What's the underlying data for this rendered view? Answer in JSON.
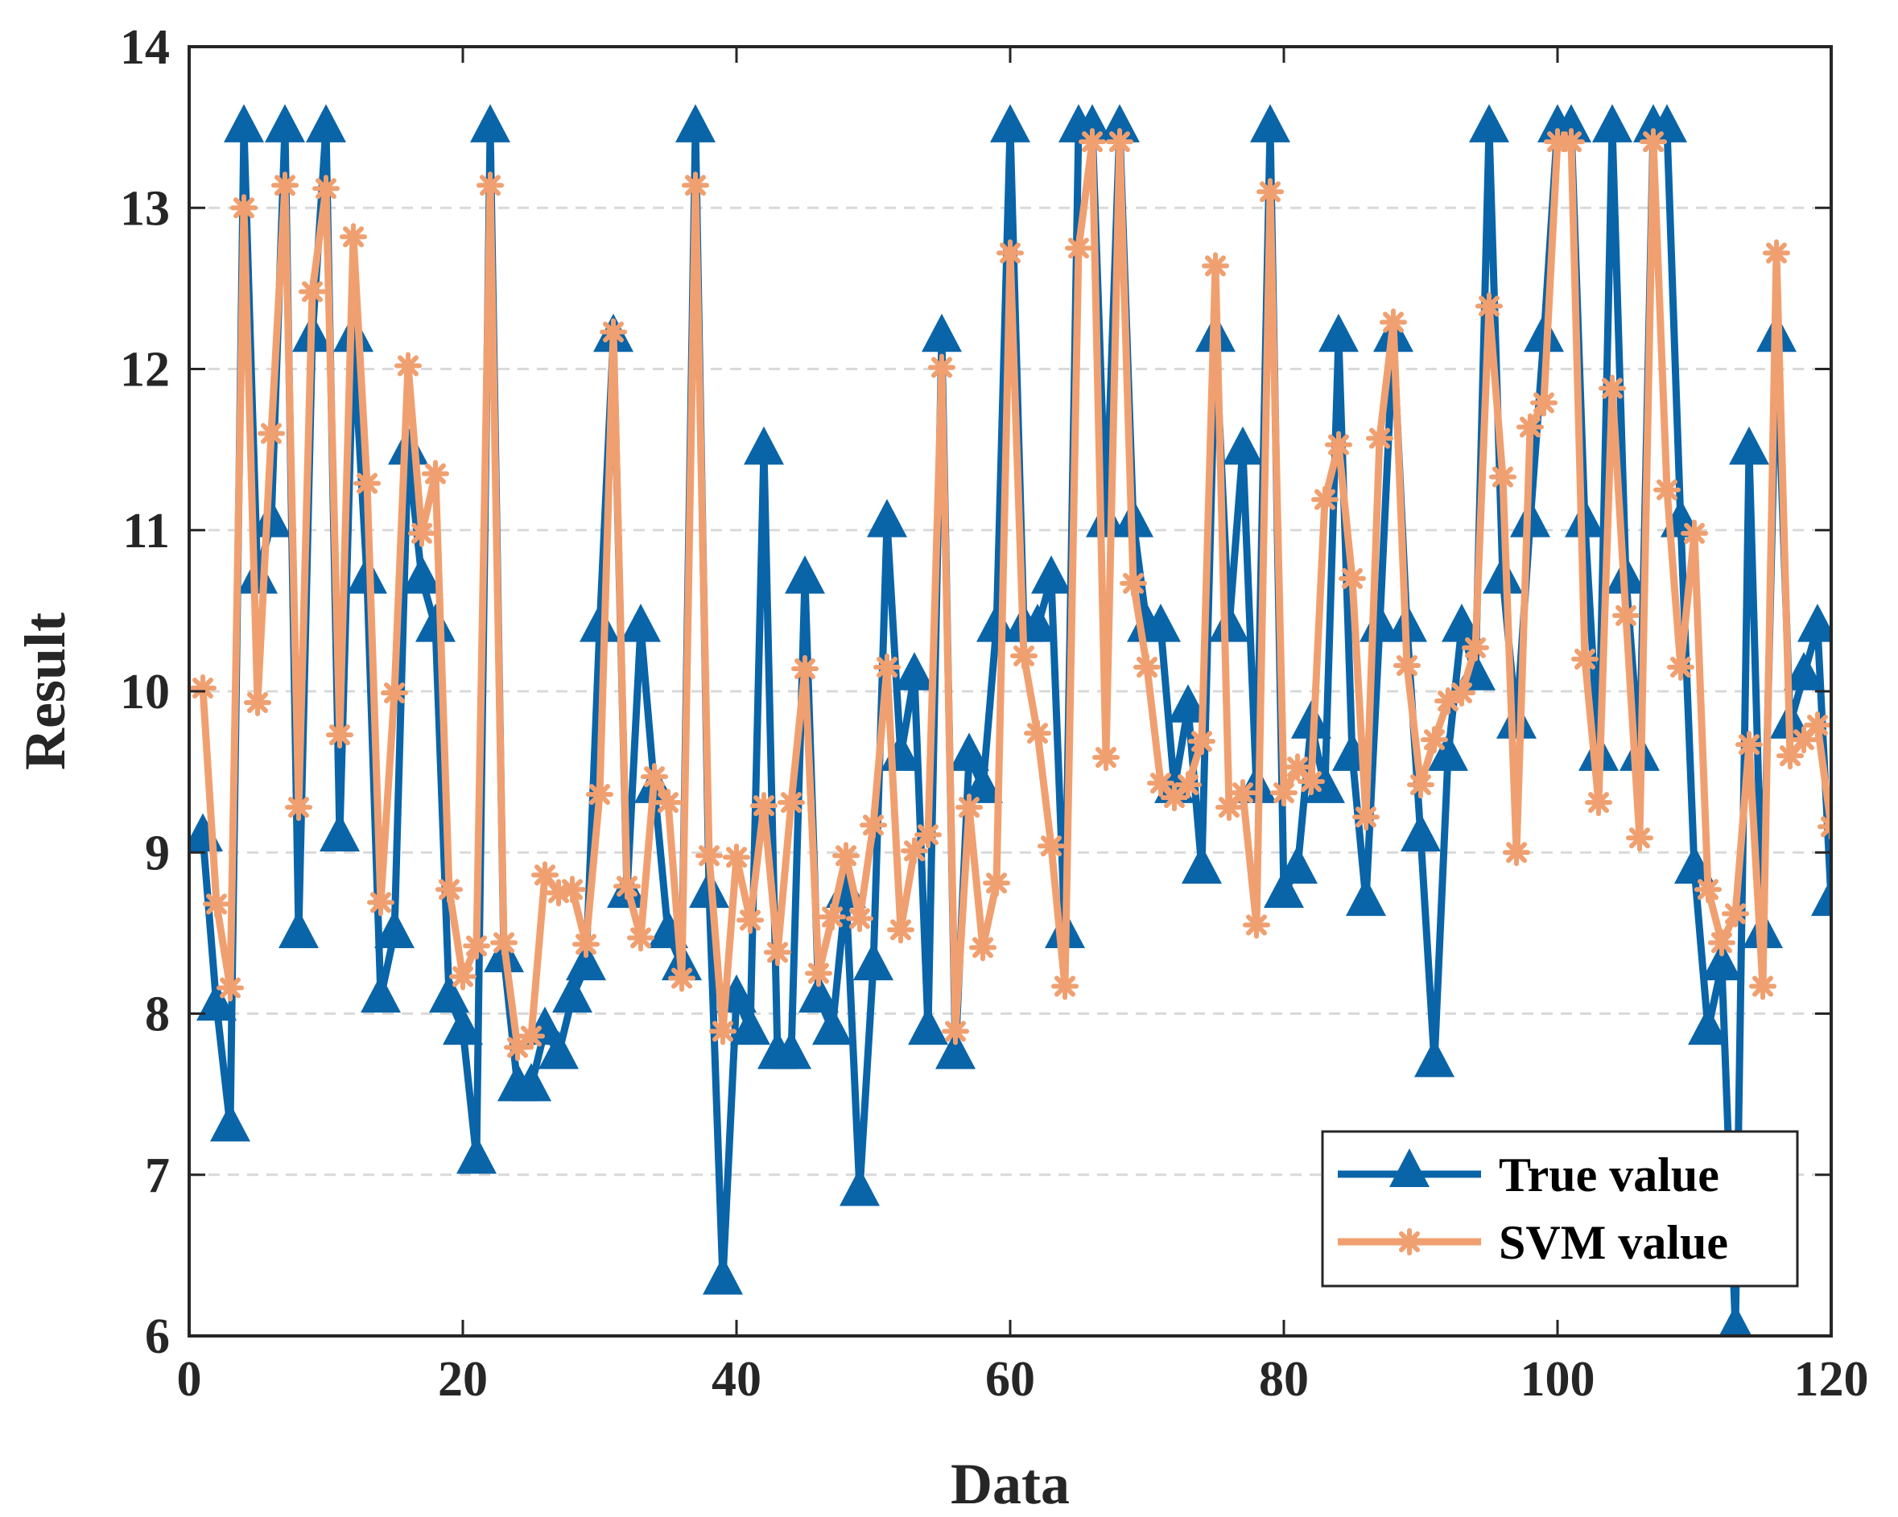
{
  "chart_data": {
    "type": "line",
    "xlabel": "Data",
    "ylabel": "Result",
    "xlim": [
      0,
      120
    ],
    "ylim": [
      6,
      14
    ],
    "xticks": [
      0,
      20,
      40,
      60,
      80,
      100,
      120
    ],
    "yticks": [
      6,
      7,
      8,
      9,
      10,
      11,
      12,
      13,
      14
    ],
    "xtick_labels": [
      "0",
      "20",
      "40",
      "60",
      "80",
      "100",
      "120"
    ],
    "ytick_labels": [
      "6",
      "7",
      "8",
      "9",
      "10",
      "11",
      "12",
      "13",
      "14"
    ],
    "grid": "horizontal dashed",
    "legend_position": "bottom-right",
    "x": [
      1,
      2,
      3,
      4,
      5,
      6,
      7,
      8,
      9,
      10,
      11,
      12,
      13,
      14,
      15,
      16,
      17,
      18,
      19,
      20,
      21,
      22,
      23,
      24,
      25,
      26,
      27,
      28,
      29,
      30,
      31,
      32,
      33,
      34,
      35,
      36,
      37,
      38,
      39,
      40,
      41,
      42,
      43,
      44,
      45,
      46,
      47,
      48,
      49,
      50,
      51,
      52,
      53,
      54,
      55,
      56,
      57,
      58,
      59,
      60,
      61,
      62,
      63,
      64,
      65,
      66,
      67,
      68,
      69,
      70,
      71,
      72,
      73,
      74,
      75,
      76,
      77,
      78,
      79,
      80,
      81,
      82,
      83,
      84,
      85,
      86,
      87,
      88,
      89,
      90,
      91,
      92,
      93,
      94,
      95,
      96,
      97,
      98,
      99,
      100,
      101,
      102,
      103,
      104,
      105,
      106,
      107,
      108,
      109,
      110,
      111,
      112,
      113,
      114,
      115,
      116,
      117,
      118,
      119,
      120
    ],
    "series": [
      {
        "name": "True value",
        "color": "#0a64a8",
        "marker": "triangle",
        "values": [
          9.1,
          8.05,
          7.3,
          13.5,
          10.7,
          11.05,
          13.5,
          8.5,
          12.2,
          13.5,
          9.1,
          12.2,
          10.7,
          8.1,
          8.5,
          11.5,
          10.7,
          10.4,
          8.1,
          7.9,
          7.1,
          13.5,
          8.35,
          7.55,
          7.55,
          7.9,
          7.75,
          8.1,
          8.3,
          10.4,
          12.2,
          8.75,
          10.4,
          9.4,
          8.5,
          8.3,
          13.5,
          8.75,
          6.35,
          8.1,
          7.9,
          11.5,
          7.75,
          7.75,
          10.7,
          8.1,
          7.9,
          8.75,
          6.9,
          8.3,
          11.05,
          9.6,
          10.1,
          7.9,
          12.2,
          7.75,
          9.6,
          9.4,
          10.4,
          13.5,
          10.4,
          10.4,
          10.7,
          8.5,
          13.5,
          13.5,
          11.05,
          13.5,
          11.05,
          10.4,
          10.4,
          9.4,
          9.9,
          8.9,
          12.2,
          10.4,
          11.5,
          9.4,
          13.5,
          8.75,
          8.9,
          9.8,
          9.4,
          12.2,
          9.6,
          8.7,
          10.4,
          12.2,
          10.4,
          9.1,
          7.7,
          9.6,
          10.4,
          10.1,
          13.5,
          10.7,
          9.8,
          11.05,
          12.2,
          13.5,
          13.5,
          11.05,
          9.6,
          13.5,
          10.7,
          9.6,
          13.5,
          13.5,
          11.05,
          8.9,
          7.9,
          8.3,
          6.05,
          11.5,
          8.5,
          12.2,
          9.8,
          10.1,
          10.4,
          8.7
        ]
      },
      {
        "name": "SVM value",
        "color": "#f0a070",
        "marker": "asterisk",
        "values": [
          10.02,
          8.68,
          8.16,
          13.0,
          9.93,
          11.6,
          13.14,
          9.28,
          12.48,
          13.12,
          9.73,
          12.82,
          11.29,
          8.69,
          9.99,
          12.02,
          10.98,
          11.35,
          8.77,
          8.23,
          8.42,
          13.14,
          8.44,
          7.79,
          7.86,
          8.86,
          8.75,
          8.77,
          8.43,
          9.36,
          12.23,
          8.79,
          8.47,
          9.47,
          9.31,
          8.22,
          13.14,
          8.98,
          7.89,
          8.97,
          8.58,
          9.29,
          8.38,
          9.31,
          10.14,
          8.25,
          8.6,
          8.98,
          8.59,
          9.17,
          10.15,
          8.52,
          9.01,
          9.11,
          12.01,
          7.89,
          9.28,
          8.41,
          8.81,
          12.72,
          10.22,
          9.74,
          9.04,
          8.17,
          12.75,
          13.41,
          9.59,
          13.41,
          10.67,
          10.15,
          9.43,
          9.34,
          9.42,
          9.69,
          12.64,
          9.28,
          9.37,
          8.55,
          13.1,
          9.37,
          9.53,
          9.44,
          11.19,
          11.53,
          10.7,
          9.22,
          11.57,
          12.29,
          10.16,
          9.42,
          9.7,
          9.94,
          9.99,
          10.27,
          12.39,
          11.33,
          9.0,
          11.64,
          11.79,
          13.41,
          13.41,
          10.2,
          9.31,
          11.88,
          10.47,
          9.09,
          13.41,
          11.25,
          10.15,
          10.98,
          8.77,
          8.44,
          8.62,
          9.67,
          8.17,
          12.72,
          9.6,
          9.7,
          9.79,
          9.16
        ]
      }
    ]
  }
}
